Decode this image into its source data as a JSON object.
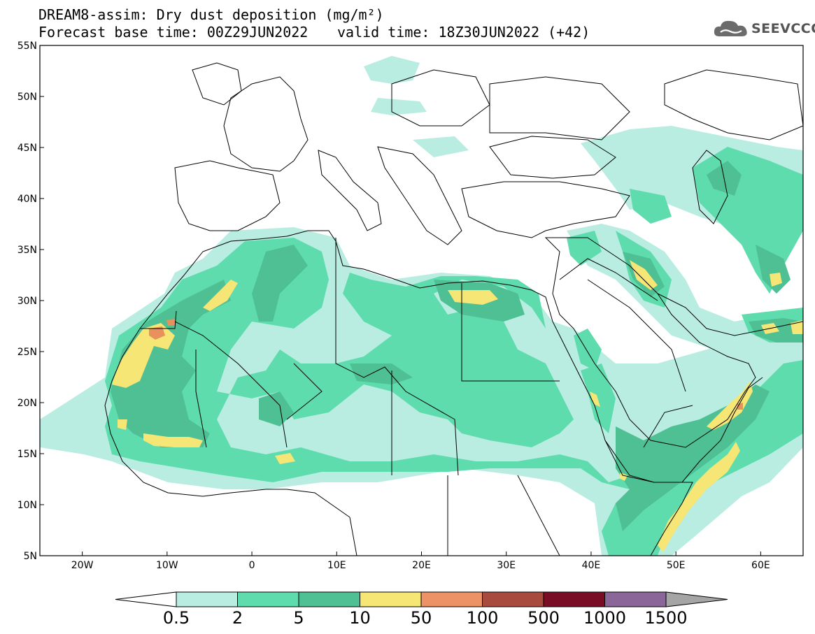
{
  "header": {
    "title": "DREAM8-assim: Dry dust deposition (mg/m²)",
    "base_time": "Forecast base time: 00Z29JUN2022",
    "valid_time": "valid time: 18Z30JUN2022 (+42)",
    "logo_text": "SEEVCCC",
    "logo_icon": "cloud-icon"
  },
  "map": {
    "lon_range": [
      -25,
      65
    ],
    "lat_range": [
      5,
      55
    ],
    "lat_ticks": [
      {
        "value": 55,
        "label": "55N"
      },
      {
        "value": 50,
        "label": "50N"
      },
      {
        "value": 45,
        "label": "45N"
      },
      {
        "value": 40,
        "label": "40N"
      },
      {
        "value": 35,
        "label": "35N"
      },
      {
        "value": 30,
        "label": "30N"
      },
      {
        "value": 25,
        "label": "25N"
      },
      {
        "value": 20,
        "label": "20N"
      },
      {
        "value": 15,
        "label": "15N"
      },
      {
        "value": 10,
        "label": "10N"
      },
      {
        "value": 5,
        "label": "5N"
      }
    ],
    "lon_ticks": [
      {
        "value": -20,
        "label": "20W"
      },
      {
        "value": -10,
        "label": "10W"
      },
      {
        "value": 0,
        "label": "0"
      },
      {
        "value": 10,
        "label": "10E"
      },
      {
        "value": 20,
        "label": "20E"
      },
      {
        "value": 30,
        "label": "30E"
      },
      {
        "value": 40,
        "label": "40E"
      },
      {
        "value": 50,
        "label": "50E"
      },
      {
        "value": 60,
        "label": "60E"
      }
    ],
    "colors": {
      "l0": "#b9ede1",
      "l1": "#5edcae",
      "l2": "#4fbf94",
      "l3": "#f5e676",
      "l4": "#e8915c",
      "coast": "#000000"
    }
  },
  "colorbar": {
    "labels": [
      "0.5",
      "2",
      "5",
      "10",
      "50",
      "100",
      "500",
      "1000",
      "1500"
    ],
    "colors": [
      "#b9ede1",
      "#5edcae",
      "#4fbf94",
      "#f5e676",
      "#ec9266",
      "#a94a3e",
      "#7a0d26",
      "#8a6798"
    ],
    "under_color": "#ffffff",
    "over_color": "#a5a5a5"
  }
}
